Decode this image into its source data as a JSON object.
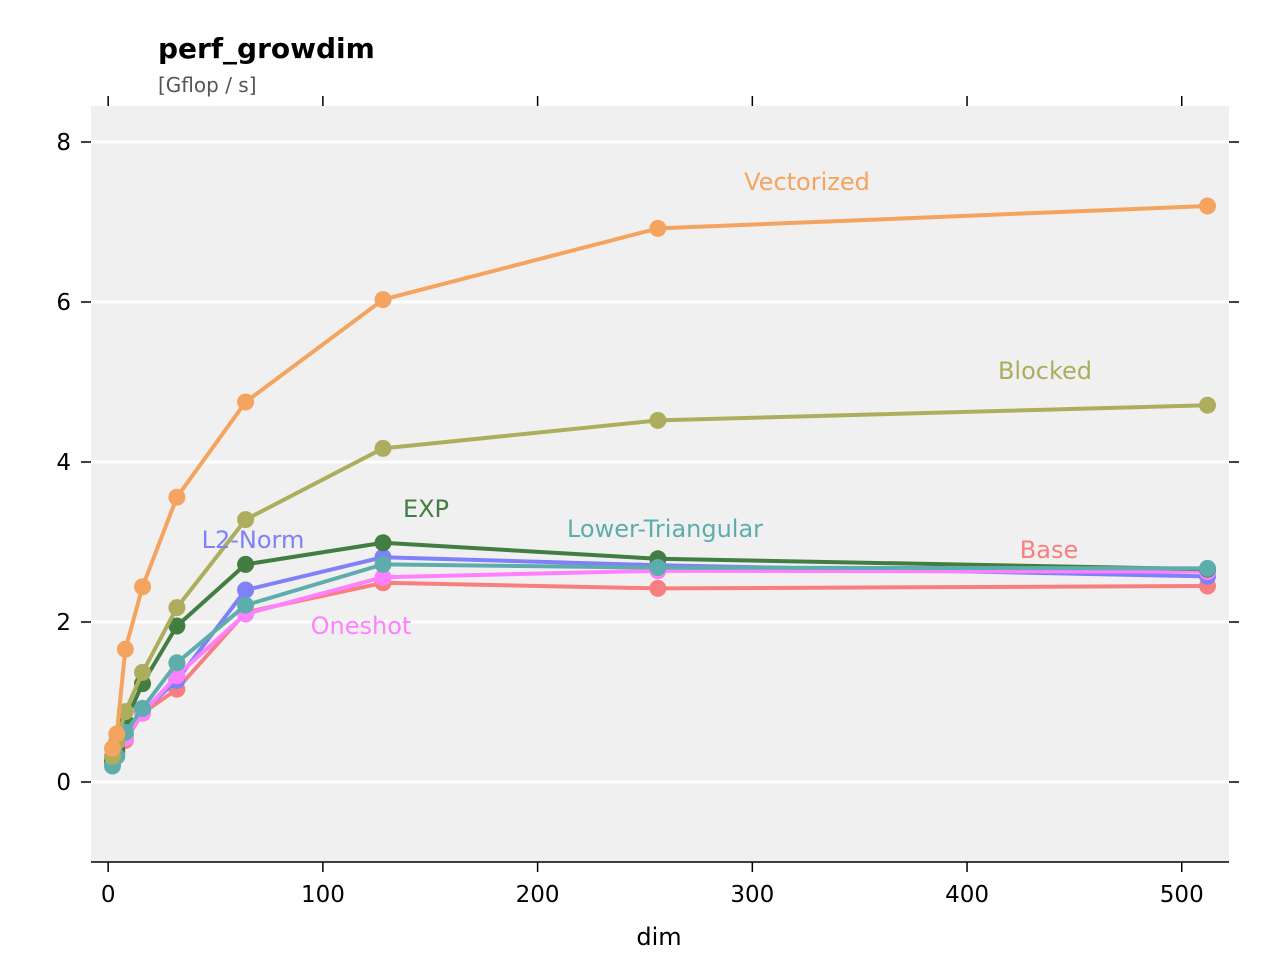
{
  "chart_data": {
    "type": "line",
    "title": "perf_growdim",
    "subtitle": "[Gflop / s]",
    "xlabel": "dim",
    "ylabel": "",
    "xlim": [
      -8,
      522
    ],
    "ylim": [
      -1,
      8.45
    ],
    "xticks": [
      0,
      100,
      200,
      300,
      400,
      500
    ],
    "yticks": [
      0,
      2,
      4,
      6,
      8
    ],
    "grid": "horizontal",
    "legend": "inline labels",
    "x": [
      2,
      4,
      8,
      16,
      32,
      64,
      128,
      256,
      512
    ],
    "series": [
      {
        "name": "Base",
        "color": "#f87f7f",
        "values": [
          0.22,
          0.36,
          0.52,
          0.86,
          1.16,
          2.12,
          2.49,
          2.42,
          2.45
        ]
      },
      {
        "name": "L2-Norm",
        "color": "#8080f8",
        "values": [
          0.22,
          0.37,
          0.58,
          0.88,
          1.27,
          2.4,
          2.81,
          2.71,
          2.57
        ]
      },
      {
        "name": "Oneshot",
        "color": "#ff80ff",
        "values": [
          0.22,
          0.35,
          0.55,
          0.86,
          1.33,
          2.1,
          2.56,
          2.64,
          2.63
        ]
      },
      {
        "name": "EXP",
        "color": "#427d42",
        "values": [
          0.27,
          0.4,
          0.75,
          1.23,
          1.95,
          2.72,
          2.99,
          2.79,
          2.66
        ]
      },
      {
        "name": "Lower-Triangular",
        "color": "#5eadad",
        "values": [
          0.2,
          0.32,
          0.62,
          0.92,
          1.49,
          2.21,
          2.72,
          2.68,
          2.67
        ]
      },
      {
        "name": "Blocked",
        "color": "#adad5e",
        "values": [
          0.32,
          0.5,
          0.88,
          1.37,
          2.18,
          3.28,
          4.17,
          4.52,
          4.71
        ]
      },
      {
        "name": "Vectorized",
        "color": "#f4a45e",
        "values": [
          0.42,
          0.6,
          1.66,
          2.44,
          3.56,
          4.75,
          6.03,
          6.92,
          7.2
        ]
      }
    ]
  }
}
